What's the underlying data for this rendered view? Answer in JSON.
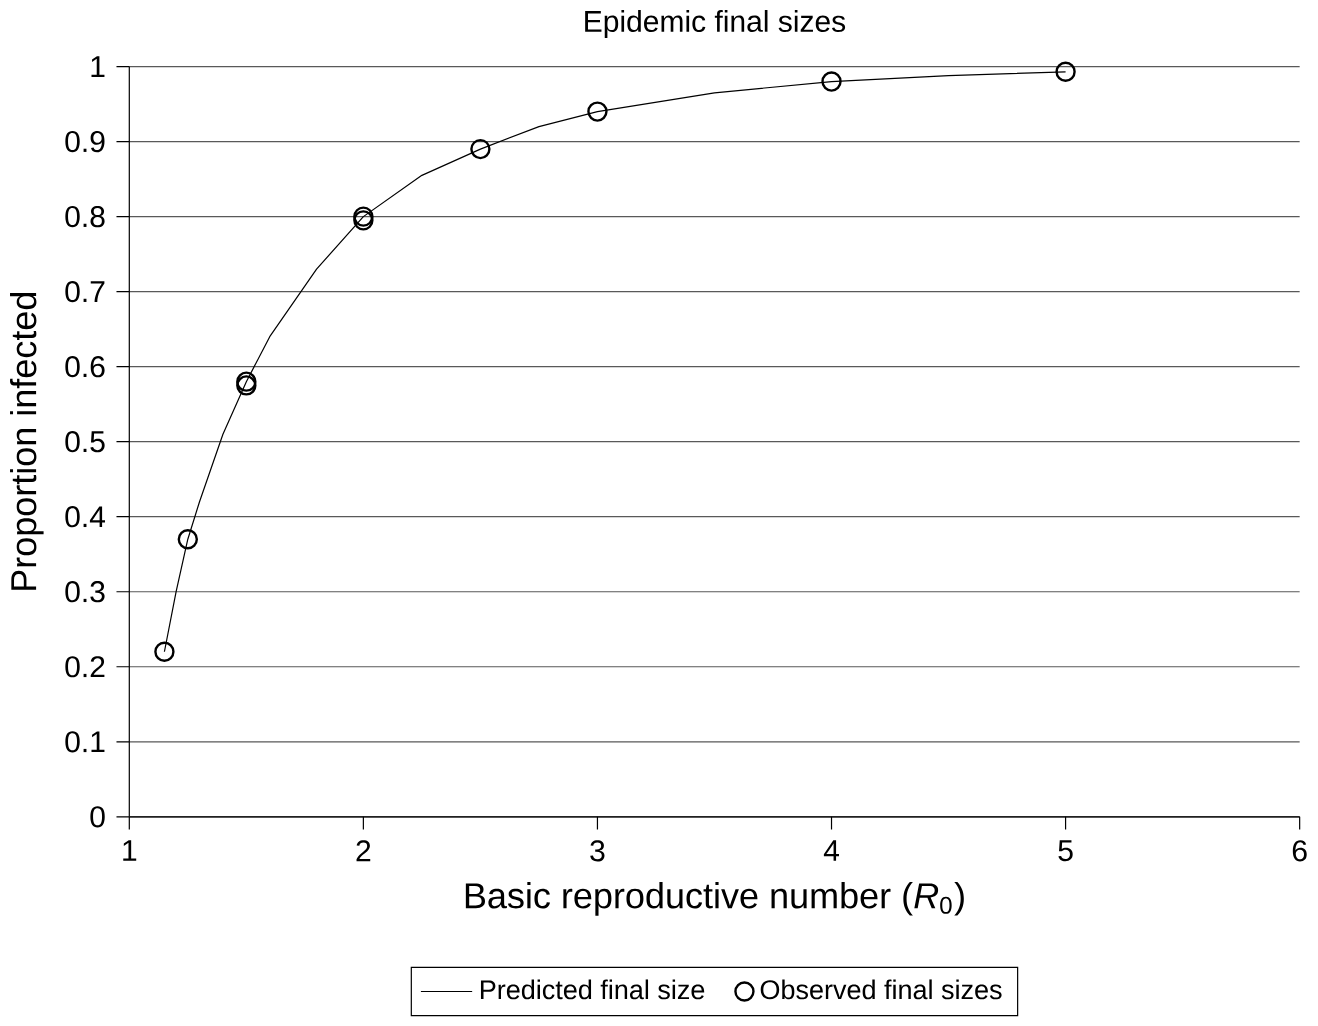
{
  "chart_data": {
    "type": "line",
    "title": "Epidemic final sizes",
    "xlabel": "Basic reproductive number (*R*$_{0}$)",
    "ylabel": "Proportion infected",
    "xlim": [
      1,
      6
    ],
    "xticks": [
      1,
      2,
      3,
      4,
      5,
      6
    ],
    "ylim": [
      0,
      1
    ],
    "yticks": [
      0,
      0.1,
      0.2,
      0.3,
      0.4,
      0.5,
      0.6,
      0.7,
      0.8,
      0.9,
      1
    ],
    "grid": "y",
    "legend": "bottom",
    "series": [
      {
        "name": "Predicted final size",
        "color": "#000000",
        "marker": "none",
        "x": [
          1.15,
          1.2,
          1.25,
          1.3,
          1.4,
          1.5,
          1.6,
          1.8,
          2,
          2.25,
          2.5,
          2.75,
          3,
          3.5,
          4,
          4.5,
          5
        ],
        "values": [
          0.22,
          0.3,
          0.37,
          0.42,
          0.51,
          0.58,
          0.64,
          0.73,
          0.8,
          0.855,
          0.89,
          0.92,
          0.94,
          0.965,
          0.98,
          0.988,
          0.993
        ]
      },
      {
        "name": "Observed final sizes",
        "type": "scatter",
        "color": "#000000",
        "marker": "circle",
        "x": [
          1.15,
          1.25,
          1.5,
          1.5,
          2,
          2,
          2.5,
          3,
          4,
          5
        ],
        "values": [
          0.22,
          0.37,
          0.58,
          0.575,
          0.8,
          0.795,
          0.89,
          0.94,
          0.98,
          0.993
        ]
      }
    ]
  }
}
